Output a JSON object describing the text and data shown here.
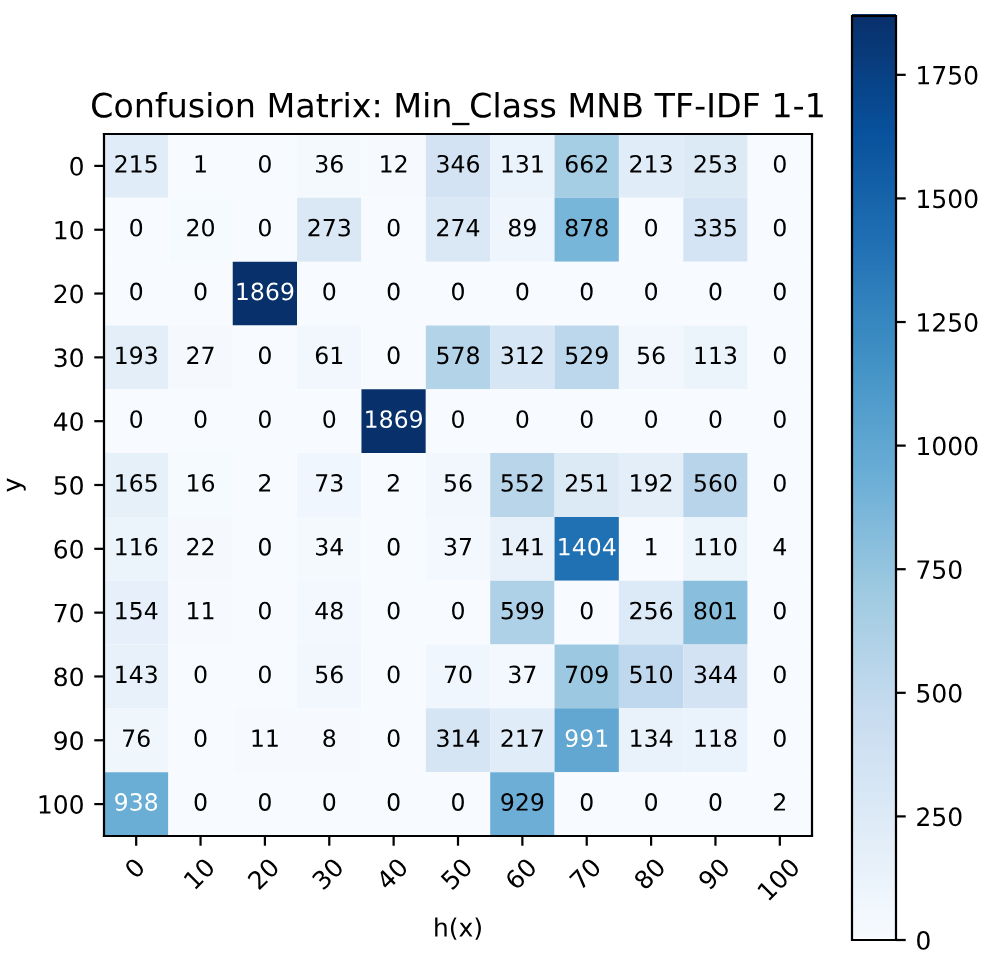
{
  "chart_data": {
    "type": "heatmap",
    "title": "Confusion Matrix: Min_Class MNB TF-IDF 1-1",
    "xlabel": "h(x)",
    "ylabel": "y",
    "categories": [
      "0",
      "10",
      "20",
      "30",
      "40",
      "50",
      "60",
      "70",
      "80",
      "90",
      "100"
    ],
    "y_categories": [
      "0",
      "10",
      "20",
      "30",
      "40",
      "50",
      "60",
      "70",
      "80",
      "90",
      "100"
    ],
    "cells": [
      [
        215,
        1,
        0,
        36,
        12,
        346,
        131,
        662,
        213,
        253,
        0
      ],
      [
        0,
        20,
        0,
        273,
        0,
        274,
        89,
        878,
        0,
        335,
        0
      ],
      [
        0,
        0,
        1869,
        0,
        0,
        0,
        0,
        0,
        0,
        0,
        0
      ],
      [
        193,
        27,
        0,
        61,
        0,
        578,
        312,
        529,
        56,
        113,
        0
      ],
      [
        0,
        0,
        0,
        0,
        1869,
        0,
        0,
        0,
        0,
        0,
        0
      ],
      [
        165,
        16,
        2,
        73,
        2,
        56,
        552,
        251,
        192,
        560,
        0
      ],
      [
        116,
        22,
        0,
        34,
        0,
        37,
        141,
        1404,
        1,
        110,
        4
      ],
      [
        154,
        11,
        0,
        48,
        0,
        0,
        599,
        0,
        256,
        801,
        0
      ],
      [
        143,
        0,
        0,
        56,
        0,
        70,
        37,
        709,
        510,
        344,
        0
      ],
      [
        76,
        0,
        11,
        8,
        0,
        314,
        217,
        991,
        134,
        118,
        0
      ],
      [
        938,
        0,
        0,
        0,
        0,
        0,
        929,
        0,
        0,
        0,
        2
      ]
    ],
    "clim": [
      0,
      1869
    ],
    "cticks": [
      0,
      250,
      500,
      750,
      1000,
      1250,
      1500,
      1750
    ],
    "data_labels": true,
    "grid": false
  }
}
